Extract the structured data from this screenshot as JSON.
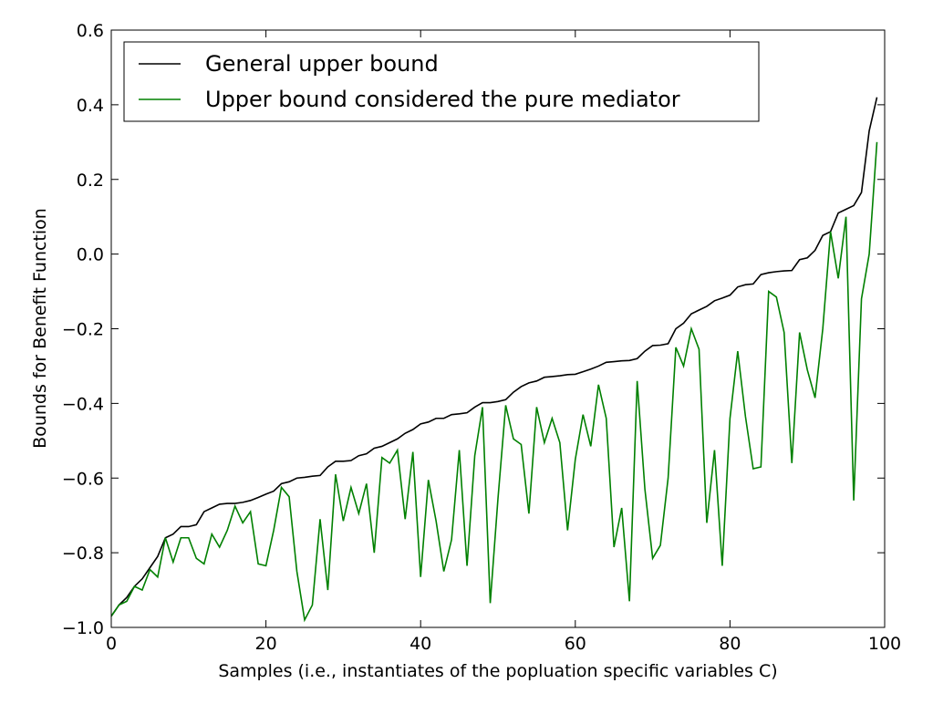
{
  "chart_data": {
    "type": "line",
    "title": "",
    "xlabel": "Samples (i.e., instantiates of the popluation specific variables C)",
    "ylabel": "Bounds for Benefit Function",
    "xlim": [
      0,
      100
    ],
    "ylim": [
      -1.0,
      0.6
    ],
    "xticks": [
      0,
      20,
      40,
      60,
      80,
      100
    ],
    "xtick_labels": [
      "0",
      "20",
      "40",
      "60",
      "80",
      "100"
    ],
    "yticks": [
      -1.0,
      -0.8,
      -0.6,
      -0.4,
      -0.2,
      0.0,
      0.2,
      0.4,
      0.6
    ],
    "ytick_labels": [
      "−1.0",
      "−0.8",
      "−0.6",
      "−0.4",
      "−0.2",
      "0.0",
      "0.2",
      "0.4",
      "0.6"
    ],
    "grid": false,
    "legend": "top-left",
    "x": [
      0,
      1,
      2,
      3,
      4,
      5,
      6,
      7,
      8,
      9,
      10,
      11,
      12,
      13,
      14,
      15,
      16,
      17,
      18,
      19,
      20,
      21,
      22,
      23,
      24,
      25,
      26,
      27,
      28,
      29,
      30,
      31,
      32,
      33,
      34,
      35,
      36,
      37,
      38,
      39,
      40,
      41,
      42,
      43,
      44,
      45,
      46,
      47,
      48,
      49,
      50,
      51,
      52,
      53,
      54,
      55,
      56,
      57,
      58,
      59,
      60,
      61,
      62,
      63,
      64,
      65,
      66,
      67,
      68,
      69,
      70,
      71,
      72,
      73,
      74,
      75,
      76,
      77,
      78,
      79,
      80,
      81,
      82,
      83,
      84,
      85,
      86,
      87,
      88,
      89,
      90,
      91,
      92,
      93,
      94,
      95,
      96,
      97,
      98,
      99
    ],
    "series": [
      {
        "name": "General upper bound",
        "color": "#000000",
        "values": [
          -0.97,
          -0.94,
          -0.92,
          -0.89,
          -0.87,
          -0.84,
          -0.81,
          -0.76,
          -0.75,
          -0.73,
          -0.73,
          -0.725,
          -0.69,
          -0.68,
          -0.67,
          -0.668,
          -0.668,
          -0.665,
          -0.66,
          -0.652,
          -0.643,
          -0.635,
          -0.615,
          -0.61,
          -0.6,
          -0.598,
          -0.595,
          -0.593,
          -0.57,
          -0.555,
          -0.555,
          -0.553,
          -0.54,
          -0.535,
          -0.52,
          -0.515,
          -0.505,
          -0.495,
          -0.48,
          -0.47,
          -0.455,
          -0.45,
          -0.44,
          -0.44,
          -0.43,
          -0.428,
          -0.425,
          -0.41,
          -0.398,
          -0.398,
          -0.395,
          -0.39,
          -0.37,
          -0.355,
          -0.345,
          -0.34,
          -0.33,
          -0.328,
          -0.326,
          -0.323,
          -0.322,
          -0.315,
          -0.308,
          -0.3,
          -0.29,
          -0.288,
          -0.286,
          -0.285,
          -0.28,
          -0.26,
          -0.245,
          -0.244,
          -0.24,
          -0.2,
          -0.185,
          -0.16,
          -0.15,
          -0.14,
          -0.125,
          -0.118,
          -0.11,
          -0.088,
          -0.082,
          -0.08,
          -0.055,
          -0.05,
          -0.047,
          -0.045,
          -0.044,
          -0.015,
          -0.01,
          0.01,
          0.05,
          0.06,
          0.11,
          0.12,
          0.13,
          0.165,
          0.33,
          0.42
        ]
      },
      {
        "name": "Upper bound considered the pure mediator",
        "color": "#008000",
        "values": [
          -0.97,
          -0.94,
          -0.93,
          -0.89,
          -0.9,
          -0.845,
          -0.865,
          -0.76,
          -0.825,
          -0.76,
          -0.76,
          -0.815,
          -0.83,
          -0.75,
          -0.785,
          -0.74,
          -0.675,
          -0.72,
          -0.69,
          -0.83,
          -0.835,
          -0.74,
          -0.625,
          -0.65,
          -0.85,
          -0.98,
          -0.94,
          -0.71,
          -0.9,
          -0.59,
          -0.715,
          -0.625,
          -0.695,
          -0.615,
          -0.8,
          -0.545,
          -0.56,
          -0.525,
          -0.71,
          -0.53,
          -0.865,
          -0.605,
          -0.715,
          -0.85,
          -0.765,
          -0.525,
          -0.835,
          -0.54,
          -0.41,
          -0.935,
          -0.655,
          -0.405,
          -0.495,
          -0.51,
          -0.695,
          -0.41,
          -0.505,
          -0.44,
          -0.505,
          -0.74,
          -0.55,
          -0.43,
          -0.515,
          -0.35,
          -0.44,
          -0.785,
          -0.68,
          -0.93,
          -0.34,
          -0.63,
          -0.815,
          -0.78,
          -0.6,
          -0.25,
          -0.3,
          -0.2,
          -0.255,
          -0.72,
          -0.525,
          -0.835,
          -0.44,
          -0.26,
          -0.435,
          -0.575,
          -0.57,
          -0.1,
          -0.115,
          -0.21,
          -0.56,
          -0.21,
          -0.31,
          -0.385,
          -0.2,
          0.06,
          -0.065,
          0.1,
          -0.66,
          -0.12,
          0.0,
          0.3
        ]
      }
    ]
  }
}
